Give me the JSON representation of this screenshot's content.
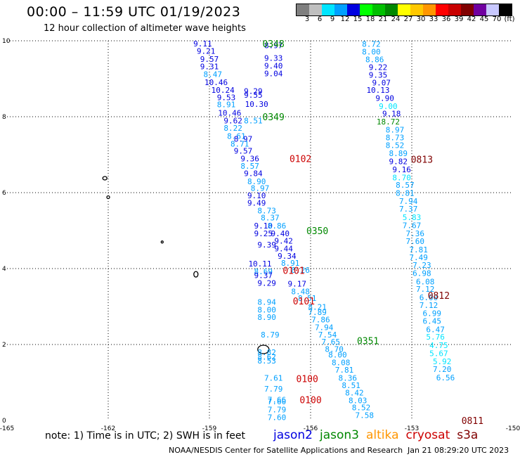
{
  "title": "00:00 – 11:59 UTC 01/19/2023",
  "subtitle": "12 hour collection of altimeter wave heights",
  "colorbar": {
    "colors": [
      "#7f7f7f",
      "#bfbfbf",
      "#00e5ff",
      "#00a0ff",
      "#0000e0",
      "#00ff00",
      "#00c000",
      "#008800",
      "#ffff00",
      "#ffc800",
      "#ff9600",
      "#ff0000",
      "#c80000",
      "#800000",
      "#7000a0",
      "#c8c8ff",
      "#000000"
    ],
    "labels": [
      "3",
      "6",
      "9",
      "12",
      "15",
      "18",
      "21",
      "24",
      "27",
      "30",
      "33",
      "36",
      "39",
      "42",
      "45",
      "70",
      "(ft)"
    ]
  },
  "axes": {
    "x_ticks": [
      "-165",
      "-162",
      "-159",
      "-156",
      "-153",
      "-150"
    ],
    "y_ticks": [
      "0",
      "2",
      "4",
      "6",
      "8",
      "10"
    ],
    "xlim": [
      -165,
      -150
    ],
    "ylim": [
      0,
      10
    ]
  },
  "satellites": {
    "jason2": {
      "label": "jason2",
      "color": "#0000e0"
    },
    "jason3": {
      "label": "jason3",
      "color": "#008800"
    },
    "altika": {
      "label": "altika",
      "color": "#ff9600"
    },
    "cryosat": {
      "label": "cryosat",
      "color": "#cc0000"
    },
    "s3a": {
      "label": "s3a",
      "color": "#800000"
    }
  },
  "note": "note: 1) Time is in UTC; 2) SWH is in feet",
  "footer": "NOAA/NESDIS Center for Satellite Applications and Research",
  "footer_date": "Jan 21 08:29:20 UTC 2023",
  "tracks": [
    {
      "time": "0348",
      "sat": "jason3",
      "lon": -157.1,
      "lat": 9.93
    },
    {
      "time": "0349",
      "sat": "jason3",
      "lon": -157.1,
      "lat": 8.0
    },
    {
      "time": "0350",
      "sat": "jason3",
      "lon": -155.8,
      "lat": 5.0
    },
    {
      "time": "0351",
      "sat": "jason3",
      "lon": -154.3,
      "lat": 2.1
    },
    {
      "time": "0102",
      "sat": "cryosat",
      "lon": -156.3,
      "lat": 6.9
    },
    {
      "time": "0101",
      "sat": "cryosat",
      "lon": -156.5,
      "lat": 3.95
    },
    {
      "time": "0101",
      "sat": "cryosat",
      "lon": -156.2,
      "lat": 3.15
    },
    {
      "time": "0100",
      "sat": "cryosat",
      "lon": -156.1,
      "lat": 1.1
    },
    {
      "time": "0100",
      "sat": "cryosat",
      "lon": -156.0,
      "lat": 0.55
    },
    {
      "time": "0813",
      "sat": "s3a",
      "lon": -152.7,
      "lat": 6.88
    },
    {
      "time": "0812",
      "sat": "s3a",
      "lon": -152.2,
      "lat": 3.3
    },
    {
      "time": "0811",
      "sat": "s3a",
      "lon": -151.2,
      "lat": 0.0
    }
  ],
  "swh": [
    {
      "v": "9.11",
      "lon": -159.2,
      "lat": 9.93,
      "c": "#0000e0"
    },
    {
      "v": "8.97",
      "lon": -157.1,
      "lat": 9.88,
      "c": "#0000e0"
    },
    {
      "v": "9.21",
      "lon": -159.1,
      "lat": 9.73,
      "c": "#0000e0"
    },
    {
      "v": "9.57",
      "lon": -159.0,
      "lat": 9.52,
      "c": "#0000e0"
    },
    {
      "v": "9.33",
      "lon": -157.1,
      "lat": 9.55,
      "c": "#0000e0"
    },
    {
      "v": "9.31",
      "lon": -159.0,
      "lat": 9.32,
      "c": "#0000e0"
    },
    {
      "v": "9.40",
      "lon": -157.1,
      "lat": 9.34,
      "c": "#0000e0"
    },
    {
      "v": "8.47",
      "lon": -158.9,
      "lat": 9.12,
      "c": "#00a0ff"
    },
    {
      "v": "9.04",
      "lon": -157.1,
      "lat": 9.14,
      "c": "#0000e0"
    },
    {
      "v": "10.46",
      "lon": -158.8,
      "lat": 8.91,
      "c": "#0000e0"
    },
    {
      "v": "10.24",
      "lon": -158.6,
      "lat": 8.7,
      "c": "#0000e0"
    },
    {
      "v": "9.29",
      "lon": -157.7,
      "lat": 8.68,
      "c": "#0000e0"
    },
    {
      "v": "9.53",
      "lon": -158.5,
      "lat": 8.51,
      "c": "#0000e0"
    },
    {
      "v": "9.55",
      "lon": -157.7,
      "lat": 8.57,
      "c": "#0000e0"
    },
    {
      "v": "8.91",
      "lon": -158.5,
      "lat": 8.32,
      "c": "#00a0ff"
    },
    {
      "v": "10.30",
      "lon": -157.6,
      "lat": 8.33,
      "c": "#0000e0"
    },
    {
      "v": "10.46",
      "lon": -158.4,
      "lat": 8.1,
      "c": "#0000e0"
    },
    {
      "v": "9.62",
      "lon": -158.3,
      "lat": 7.9,
      "c": "#0000e0"
    },
    {
      "v": "8.51",
      "lon": -157.7,
      "lat": 7.9,
      "c": "#00a0ff"
    },
    {
      "v": "8.22",
      "lon": -158.3,
      "lat": 7.7,
      "c": "#00a0ff"
    },
    {
      "v": "8.61",
      "lon": -158.2,
      "lat": 7.49,
      "c": "#00a0ff"
    },
    {
      "v": "8.97",
      "lon": -158.0,
      "lat": 7.42,
      "c": "#0000e0"
    },
    {
      "v": "8.71",
      "lon": -158.1,
      "lat": 7.29,
      "c": "#00a0ff"
    },
    {
      "v": "9.57",
      "lon": -158.0,
      "lat": 7.1,
      "c": "#0000e0"
    },
    {
      "v": "9.36",
      "lon": -157.8,
      "lat": 6.9,
      "c": "#0000e0"
    },
    {
      "v": "8.57",
      "lon": -157.8,
      "lat": 6.7,
      "c": "#00a0ff"
    },
    {
      "v": "9.84",
      "lon": -157.7,
      "lat": 6.51,
      "c": "#0000e0"
    },
    {
      "v": "8.90",
      "lon": -157.6,
      "lat": 6.3,
      "c": "#00a0ff"
    },
    {
      "v": "8.97",
      "lon": -157.5,
      "lat": 6.12,
      "c": "#00a0ff"
    },
    {
      "v": "9.10",
      "lon": -157.6,
      "lat": 5.93,
      "c": "#0000e0"
    },
    {
      "v": "9.49",
      "lon": -157.6,
      "lat": 5.73,
      "c": "#0000e0"
    },
    {
      "v": "8.73",
      "lon": -157.3,
      "lat": 5.53,
      "c": "#00a0ff"
    },
    {
      "v": "8.37",
      "lon": -157.2,
      "lat": 5.34,
      "c": "#00a0ff"
    },
    {
      "v": "9.10",
      "lon": -157.4,
      "lat": 5.13,
      "c": "#0000e0"
    },
    {
      "v": "8.86",
      "lon": -157.0,
      "lat": 5.13,
      "c": "#00a0ff"
    },
    {
      "v": "9.25",
      "lon": -157.4,
      "lat": 4.93,
      "c": "#0000e0"
    },
    {
      "v": "9.40",
      "lon": -156.9,
      "lat": 4.93,
      "c": "#0000e0"
    },
    {
      "v": "9.42",
      "lon": -156.8,
      "lat": 4.73,
      "c": "#0000e0"
    },
    {
      "v": "9.39",
      "lon": -157.3,
      "lat": 4.63,
      "c": "#0000e0"
    },
    {
      "v": "9.44",
      "lon": -156.8,
      "lat": 4.53,
      "c": "#0000e0"
    },
    {
      "v": "9.34",
      "lon": -156.7,
      "lat": 4.33,
      "c": "#0000e0"
    },
    {
      "v": "10.11",
      "lon": -157.5,
      "lat": 4.13,
      "c": "#0000e0"
    },
    {
      "v": "8.91",
      "lon": -156.6,
      "lat": 4.15,
      "c": "#00a0ff"
    },
    {
      "v": "8.69",
      "lon": -157.4,
      "lat": 3.93,
      "c": "#00a0ff"
    },
    {
      "v": "8.26",
      "lon": -156.3,
      "lat": 3.96,
      "c": "#00a0ff"
    },
    {
      "v": "9.37",
      "lon": -157.4,
      "lat": 3.82,
      "c": "#0000e0"
    },
    {
      "v": "9.29",
      "lon": -157.3,
      "lat": 3.62,
      "c": "#0000e0"
    },
    {
      "v": "9.17",
      "lon": -156.4,
      "lat": 3.6,
      "c": "#0000e0"
    },
    {
      "v": "8.48",
      "lon": -156.3,
      "lat": 3.4,
      "c": "#00a0ff"
    },
    {
      "v": "8.51",
      "lon": -156.1,
      "lat": 3.22,
      "c": "#00a0ff"
    },
    {
      "v": "8.94",
      "lon": -157.3,
      "lat": 3.12,
      "c": "#00a0ff"
    },
    {
      "v": "8.00",
      "lon": -157.3,
      "lat": 2.92,
      "c": "#00a0ff"
    },
    {
      "v": "8.21",
      "lon": -155.8,
      "lat": 2.99,
      "c": "#00a0ff"
    },
    {
      "v": "7.89",
      "lon": -155.8,
      "lat": 2.85,
      "c": "#00a0ff"
    },
    {
      "v": "8.90",
      "lon": -157.3,
      "lat": 2.72,
      "c": "#00a0ff"
    },
    {
      "v": "7.86",
      "lon": -155.7,
      "lat": 2.66,
      "c": "#00a0ff"
    },
    {
      "v": "7.94",
      "lon": -155.6,
      "lat": 2.45,
      "c": "#00a0ff"
    },
    {
      "v": "8.79",
      "lon": -157.2,
      "lat": 2.26,
      "c": "#00a0ff"
    },
    {
      "v": "7.54",
      "lon": -155.5,
      "lat": 2.26,
      "c": "#00a0ff"
    },
    {
      "v": "7.65",
      "lon": -155.4,
      "lat": 2.07,
      "c": "#00a0ff"
    },
    {
      "v": "8.70",
      "lon": -155.3,
      "lat": 1.88,
      "c": "#00a0ff"
    },
    {
      "v": "8.82",
      "lon": -157.3,
      "lat": 1.8,
      "c": "#00a0ff"
    },
    {
      "v": "8.00",
      "lon": -155.2,
      "lat": 1.73,
      "c": "#00a0ff"
    },
    {
      "v": "8.62",
      "lon": -157.3,
      "lat": 1.68,
      "c": "#00a0ff"
    },
    {
      "v": "8.53",
      "lon": -157.3,
      "lat": 1.57,
      "c": "#00a0ff"
    },
    {
      "v": "8.08",
      "lon": -155.1,
      "lat": 1.53,
      "c": "#00a0ff"
    },
    {
      "v": "7.81",
      "lon": -155.0,
      "lat": 1.33,
      "c": "#00a0ff"
    },
    {
      "v": "7.61",
      "lon": -157.1,
      "lat": 1.12,
      "c": "#00a0ff"
    },
    {
      "v": "8.36",
      "lon": -154.9,
      "lat": 1.12,
      "c": "#00a0ff"
    },
    {
      "v": "8.51",
      "lon": -154.8,
      "lat": 0.93,
      "c": "#00a0ff"
    },
    {
      "v": "7.79",
      "lon": -157.1,
      "lat": 0.83,
      "c": "#00a0ff"
    },
    {
      "v": "8.42",
      "lon": -154.7,
      "lat": 0.73,
      "c": "#00a0ff"
    },
    {
      "v": "7.66",
      "lon": -157.0,
      "lat": 0.55,
      "c": "#00a0ff"
    },
    {
      "v": "8.03",
      "lon": -154.6,
      "lat": 0.53,
      "c": "#00a0ff"
    },
    {
      "v": "7.60",
      "lon": -157.0,
      "lat": 0.5,
      "c": "#00a0ff"
    },
    {
      "v": "8.52",
      "lon": -154.5,
      "lat": 0.34,
      "c": "#00a0ff"
    },
    {
      "v": "7.79",
      "lon": -157.0,
      "lat": 0.29,
      "c": "#00a0ff"
    },
    {
      "v": "7.58",
      "lon": -154.4,
      "lat": 0.14,
      "c": "#00a0ff"
    },
    {
      "v": "7.60",
      "lon": -157.0,
      "lat": 0.08,
      "c": "#00a0ff"
    },
    {
      "v": "8.72",
      "lon": -154.2,
      "lat": 9.92,
      "c": "#00a0ff"
    },
    {
      "v": "8.00",
      "lon": -154.2,
      "lat": 9.71,
      "c": "#00a0ff"
    },
    {
      "v": "8.86",
      "lon": -154.1,
      "lat": 9.51,
      "c": "#00a0ff"
    },
    {
      "v": "9.22",
      "lon": -154.0,
      "lat": 9.31,
      "c": "#0000e0"
    },
    {
      "v": "9.35",
      "lon": -154.0,
      "lat": 9.1,
      "c": "#0000e0"
    },
    {
      "v": "9.07",
      "lon": -153.9,
      "lat": 8.9,
      "c": "#0000e0"
    },
    {
      "v": "10.13",
      "lon": -154.0,
      "lat": 8.7,
      "c": "#0000e0"
    },
    {
      "v": "9.90",
      "lon": -153.8,
      "lat": 8.49,
      "c": "#0000e0"
    },
    {
      "v": "9.00",
      "lon": -153.7,
      "lat": 8.28,
      "c": "#00e5ff"
    },
    {
      "v": "9.18",
      "lon": -153.6,
      "lat": 8.08,
      "c": "#0000e0"
    },
    {
      "v": "18.72",
      "lon": -153.7,
      "lat": 7.87,
      "c": "#008800"
    },
    {
      "v": "8.97",
      "lon": -153.5,
      "lat": 7.66,
      "c": "#00a0ff"
    },
    {
      "v": "8.73",
      "lon": -153.5,
      "lat": 7.45,
      "c": "#00a0ff"
    },
    {
      "v": "8.52",
      "lon": -153.5,
      "lat": 7.25,
      "c": "#00a0ff"
    },
    {
      "v": "8.89",
      "lon": -153.4,
      "lat": 7.04,
      "c": "#00a0ff"
    },
    {
      "v": "9.82",
      "lon": -153.4,
      "lat": 6.82,
      "c": "#0000e0"
    },
    {
      "v": "9.16",
      "lon": -153.3,
      "lat": 6.61,
      "c": "#0000e0"
    },
    {
      "v": "8.70",
      "lon": -153.3,
      "lat": 6.4,
      "c": "#00e5ff"
    },
    {
      "v": "8.57",
      "lon": -153.2,
      "lat": 6.2,
      "c": "#00a0ff"
    },
    {
      "v": "8.81",
      "lon": -153.2,
      "lat": 5.99,
      "c": "#00a0ff"
    },
    {
      "v": "7.94",
      "lon": -153.1,
      "lat": 5.78,
      "c": "#00a0ff"
    },
    {
      "v": "7.37",
      "lon": -153.1,
      "lat": 5.57,
      "c": "#00a0ff"
    },
    {
      "v": "5.83",
      "lon": -153.0,
      "lat": 5.35,
      "c": "#00e5ff"
    },
    {
      "v": "7.67",
      "lon": -153.0,
      "lat": 5.14,
      "c": "#00a0ff"
    },
    {
      "v": "7.36",
      "lon": -152.9,
      "lat": 4.93,
      "c": "#00a0ff"
    },
    {
      "v": "7.60",
      "lon": -152.9,
      "lat": 4.72,
      "c": "#00a0ff"
    },
    {
      "v": "7.81",
      "lon": -152.8,
      "lat": 4.5,
      "c": "#00a0ff"
    },
    {
      "v": "7.49",
      "lon": -152.8,
      "lat": 4.3,
      "c": "#00a0ff"
    },
    {
      "v": "7.23",
      "lon": -152.7,
      "lat": 4.09,
      "c": "#00a0ff"
    },
    {
      "v": "6.98",
      "lon": -152.7,
      "lat": 3.88,
      "c": "#00a0ff"
    },
    {
      "v": "6.08",
      "lon": -152.6,
      "lat": 3.66,
      "c": "#00a0ff"
    },
    {
      "v": "7.12",
      "lon": -152.6,
      "lat": 3.46,
      "c": "#00a0ff"
    },
    {
      "v": "6.00",
      "lon": -152.5,
      "lat": 3.24,
      "c": "#00a0ff"
    },
    {
      "v": "7.12",
      "lon": -152.5,
      "lat": 3.04,
      "c": "#00a0ff"
    },
    {
      "v": "6.99",
      "lon": -152.4,
      "lat": 2.82,
      "c": "#00a0ff"
    },
    {
      "v": "6.45",
      "lon": -152.4,
      "lat": 2.62,
      "c": "#00a0ff"
    },
    {
      "v": "6.47",
      "lon": -152.3,
      "lat": 2.4,
      "c": "#00a0ff"
    },
    {
      "v": "5.76",
      "lon": -152.3,
      "lat": 2.2,
      "c": "#00e5ff"
    },
    {
      "v": "4.75",
      "lon": -152.2,
      "lat": 1.98,
      "c": "#00e5ff"
    },
    {
      "v": "5.67",
      "lon": -152.2,
      "lat": 1.77,
      "c": "#00e5ff"
    },
    {
      "v": "5.92",
      "lon": -152.1,
      "lat": 1.56,
      "c": "#00e5ff"
    },
    {
      "v": "7.20",
      "lon": -152.1,
      "lat": 1.35,
      "c": "#00a0ff"
    },
    {
      "v": "6.56",
      "lon": -152.0,
      "lat": 1.13,
      "c": "#00a0ff"
    }
  ]
}
